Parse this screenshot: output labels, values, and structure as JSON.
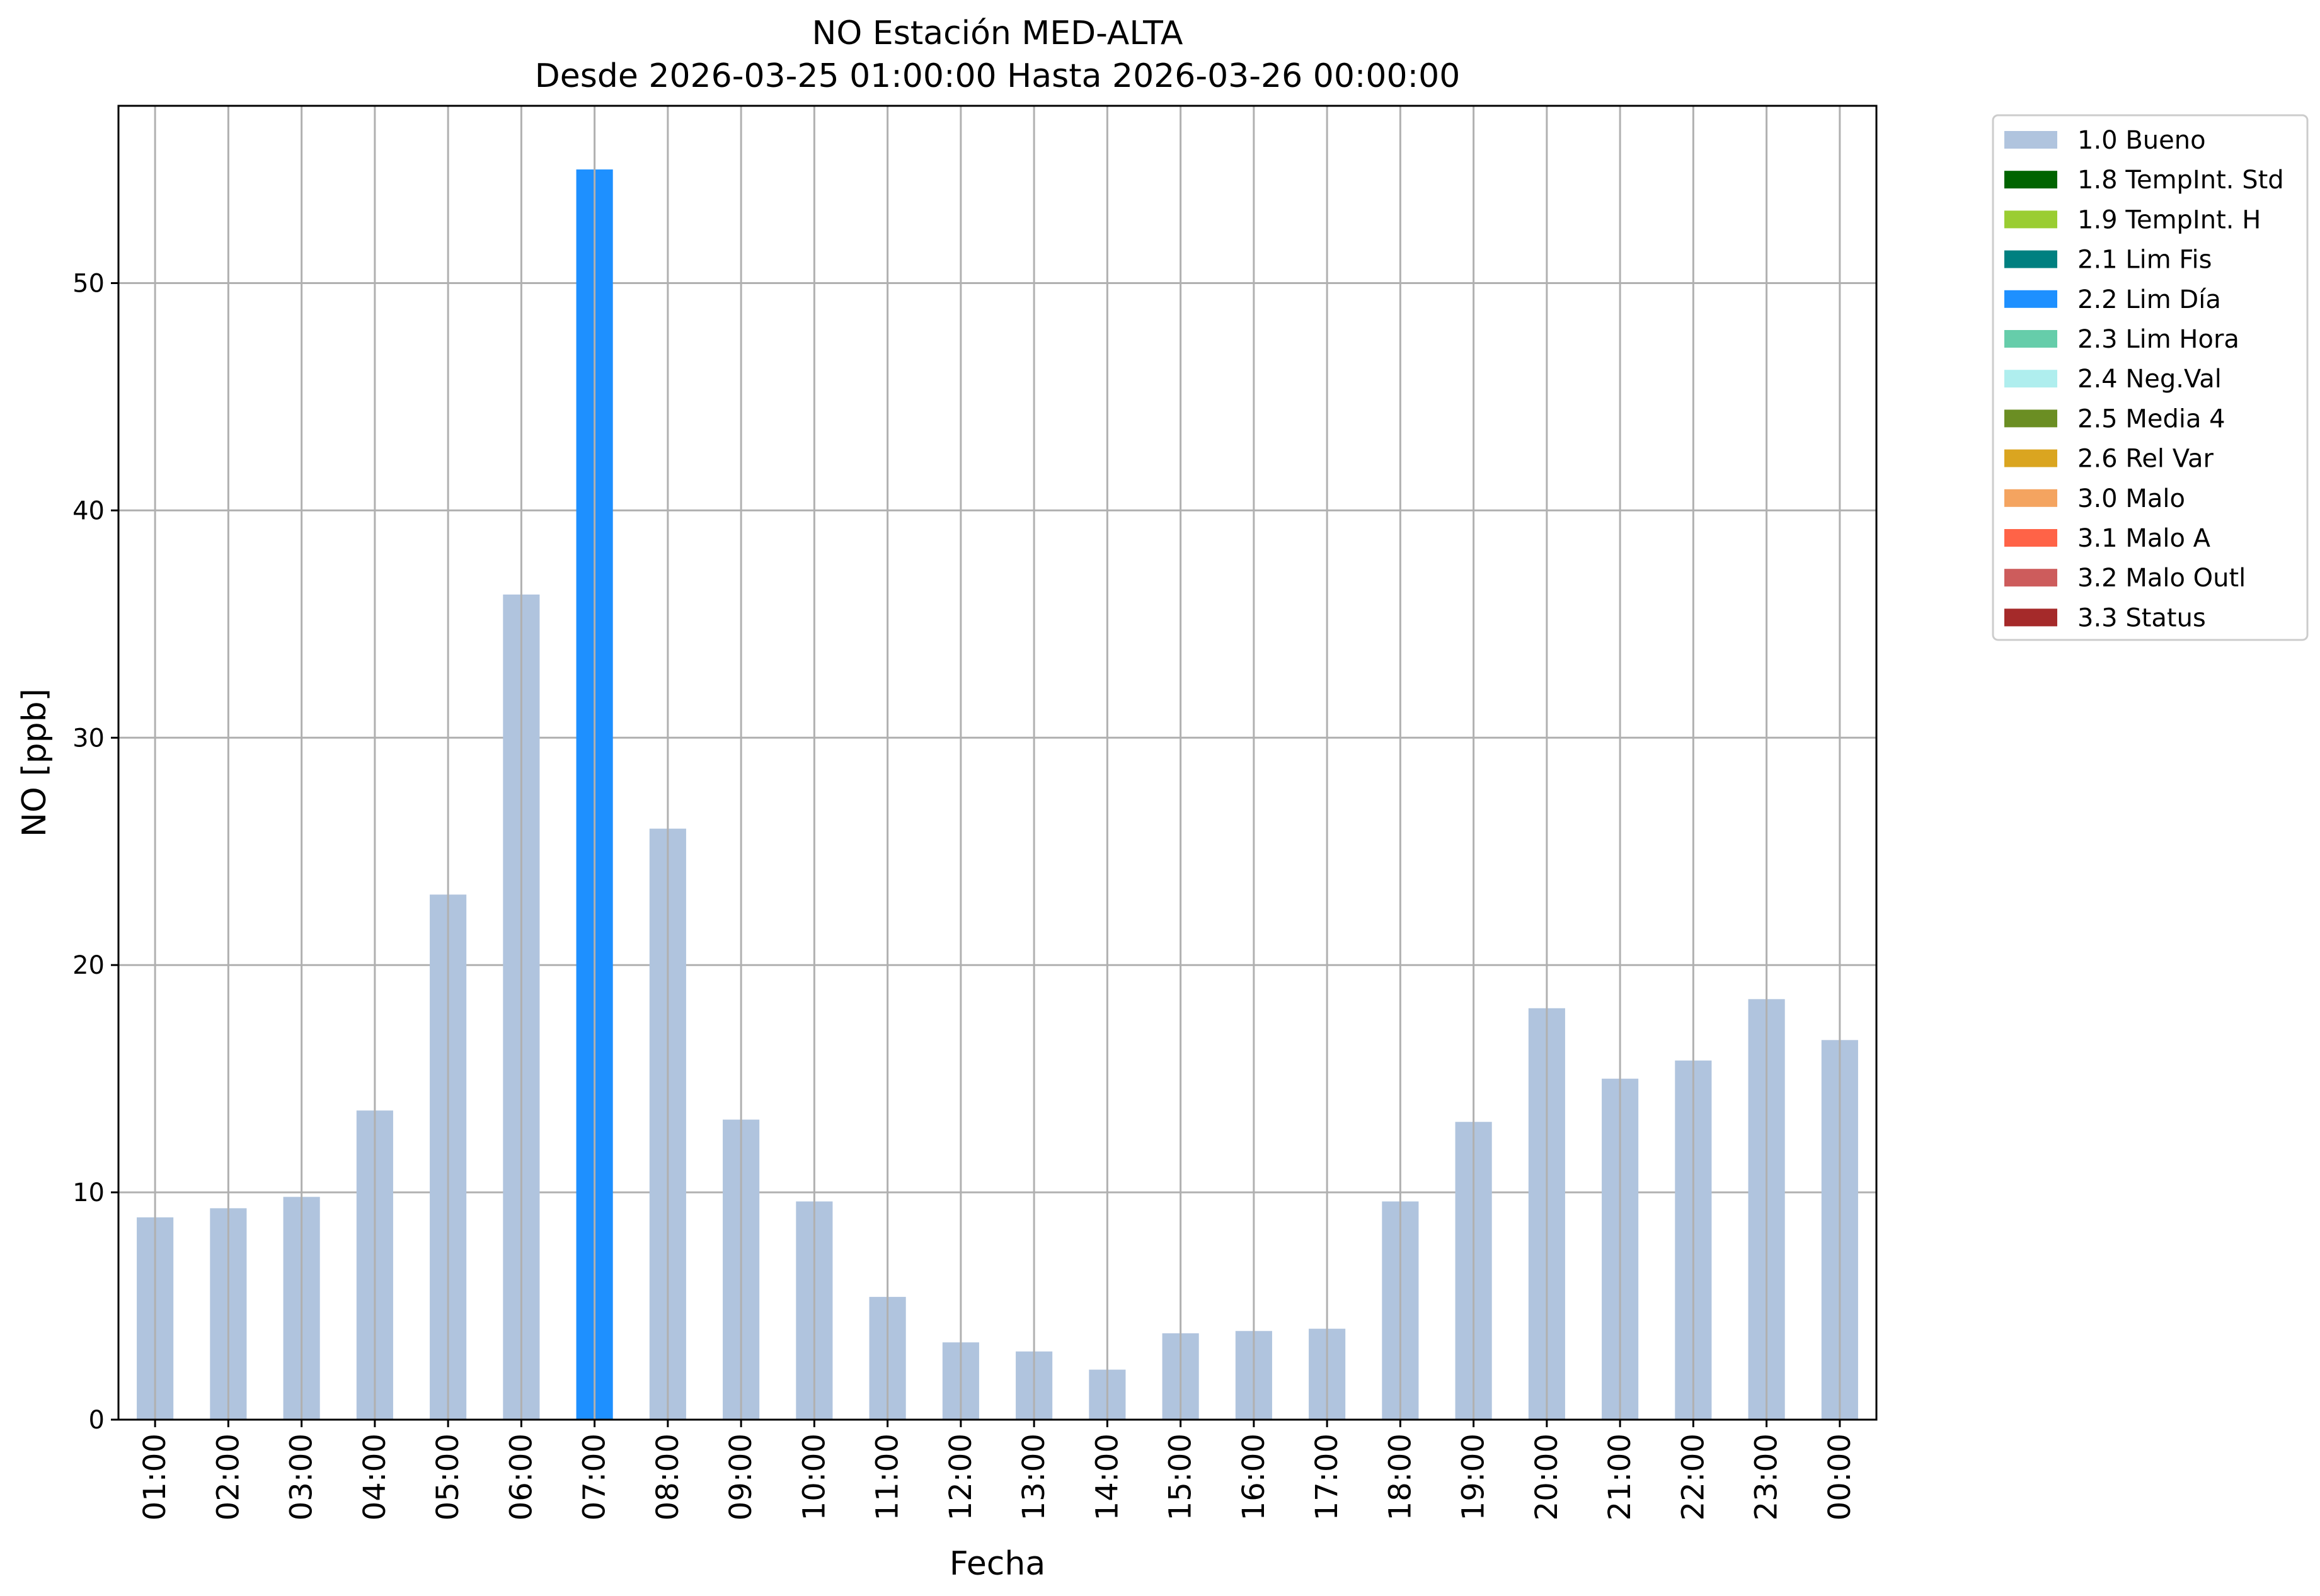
{
  "chart_data": {
    "type": "bar",
    "title": "NO Estación MED-ALTA",
    "subtitle": "Desde 2026-03-25 01:00:00 Hasta 2026-03-26 00:00:00",
    "xlabel": "Fecha",
    "ylabel": "NO [ppb]",
    "ylim": [
      0,
      57.8
    ],
    "yticks": [
      0,
      10,
      20,
      30,
      40,
      50
    ],
    "grid": true,
    "legend_position": "outside-top-right",
    "categories": [
      "01:00",
      "02:00",
      "03:00",
      "04:00",
      "05:00",
      "06:00",
      "07:00",
      "08:00",
      "09:00",
      "10:00",
      "11:00",
      "12:00",
      "13:00",
      "14:00",
      "15:00",
      "16:00",
      "17:00",
      "18:00",
      "19:00",
      "20:00",
      "21:00",
      "22:00",
      "23:00",
      "00:00"
    ],
    "values": [
      8.9,
      9.3,
      9.8,
      13.6,
      23.1,
      36.3,
      55.0,
      26.0,
      13.2,
      9.6,
      5.4,
      3.4,
      3.0,
      2.2,
      3.8,
      3.9,
      4.0,
      9.6,
      13.1,
      18.1,
      15.0,
      15.8,
      18.5,
      16.7
    ],
    "flags": [
      "1.0 Bueno",
      "1.0 Bueno",
      "1.0 Bueno",
      "1.0 Bueno",
      "1.0 Bueno",
      "1.0 Bueno",
      "2.2 Lim Día",
      "1.0 Bueno",
      "1.0 Bueno",
      "1.0 Bueno",
      "1.0 Bueno",
      "1.0 Bueno",
      "1.0 Bueno",
      "1.0 Bueno",
      "1.0 Bueno",
      "1.0 Bueno",
      "1.0 Bueno",
      "1.0 Bueno",
      "1.0 Bueno",
      "1.0 Bueno",
      "1.0 Bueno",
      "1.0 Bueno",
      "1.0 Bueno",
      "1.0 Bueno"
    ],
    "legend": [
      {
        "label": "1.0 Bueno",
        "color": "#b0c4de"
      },
      {
        "label": "1.8 TempInt. Std",
        "color": "#006400"
      },
      {
        "label": "1.9 TempInt. H",
        "color": "#9acd32"
      },
      {
        "label": "2.1 Lim Fis",
        "color": "#008080"
      },
      {
        "label": "2.2 Lim Día",
        "color": "#1e90ff"
      },
      {
        "label": "2.3 Lim Hora",
        "color": "#66cdaa"
      },
      {
        "label": "2.4 Neg.Val",
        "color": "#afeeee"
      },
      {
        "label": "2.5 Media 4",
        "color": "#6b8e23"
      },
      {
        "label": "2.6 Rel Var",
        "color": "#daa520"
      },
      {
        "label": "3.0 Malo",
        "color": "#f4a460"
      },
      {
        "label": "3.1 Malo A",
        "color": "#ff6347"
      },
      {
        "label": "3.2 Malo Outl",
        "color": "#cd5c5c"
      },
      {
        "label": "3.3 Status",
        "color": "#a52a2a"
      }
    ]
  }
}
